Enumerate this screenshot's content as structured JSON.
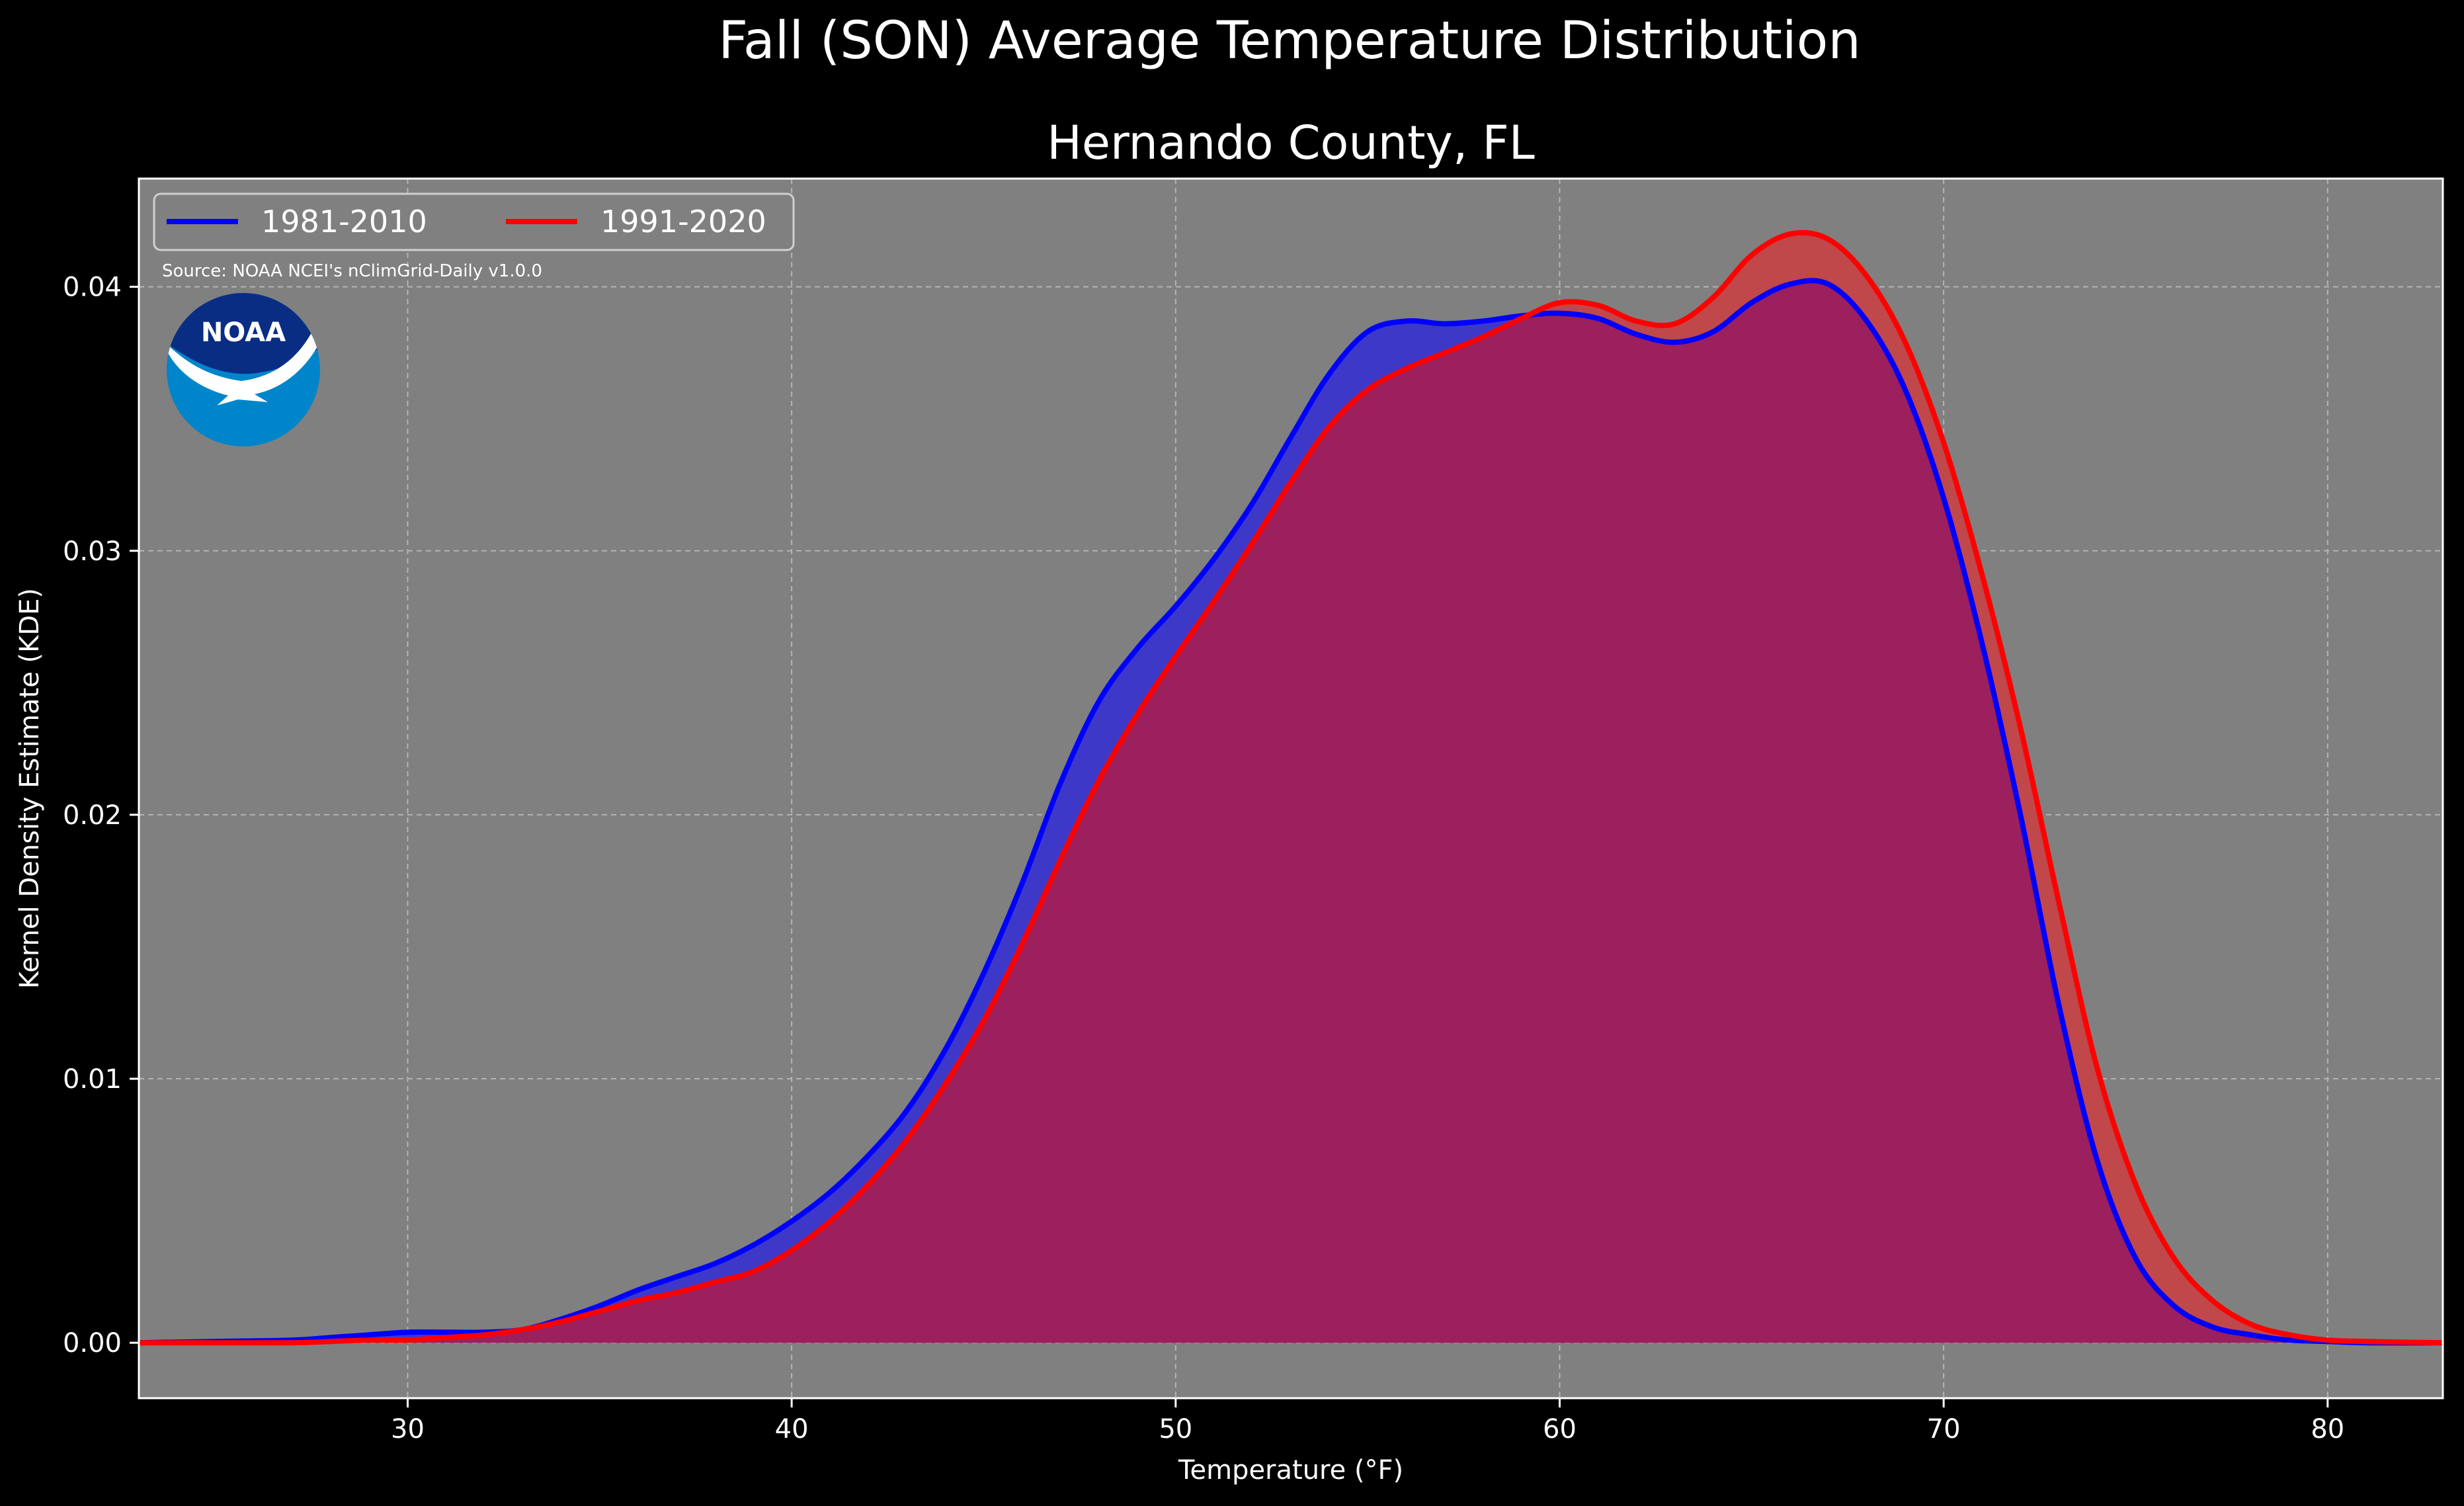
{
  "figure": {
    "suptitle": "Fall (SON) Average Temperature Distribution",
    "title": "Hernando County, FL",
    "source_note": "Source: NOAA NCEI's nClimGrid-Daily v1.0.0",
    "logo_text": "NOAA",
    "logo_icon": "noaa-logo-icon"
  },
  "colors": {
    "background": "#000000",
    "plot_background": "#808080",
    "series_1": "#0000ff",
    "series_2": "#ff0000",
    "series_1_fill": "#3d38c8",
    "series_2_fill": "#9c1f5e",
    "series_2_only_fill": "#c0474a",
    "logo_dark_blue": "#0a2d84",
    "logo_light_blue": "#0085ca"
  },
  "chart_data": {
    "type": "area",
    "title": "Hernando County, FL",
    "xlabel": "Temperature (°F)",
    "ylabel": "Kernel Density Estimate (KDE)",
    "xlim": [
      23,
      83
    ],
    "ylim": [
      -0.0021,
      0.0441
    ],
    "xticks": [
      30,
      40,
      50,
      60,
      70,
      80
    ],
    "xtick_labels": [
      "30",
      "40",
      "50",
      "60",
      "70",
      "80"
    ],
    "yticks": [
      0.0,
      0.01,
      0.02,
      0.03,
      0.04
    ],
    "ytick_labels": [
      "0.00",
      "0.01",
      "0.02",
      "0.03",
      "0.04"
    ],
    "grid": true,
    "legend_position": "upper-left",
    "x": [
      23,
      25,
      27,
      28,
      29,
      30,
      31,
      32,
      33,
      34,
      35,
      36,
      37,
      38,
      39,
      40,
      41,
      42,
      43,
      44,
      45,
      46,
      47,
      48,
      49,
      50,
      51,
      52,
      53,
      54,
      55,
      56,
      57,
      58,
      59,
      60,
      61,
      62,
      63,
      64,
      65,
      66,
      67,
      68,
      69,
      70,
      71,
      72,
      73,
      74,
      75,
      76,
      77,
      78,
      79,
      80,
      81,
      83
    ],
    "series": [
      {
        "name": "1981-2010",
        "color": "#0000ff",
        "values": [
          0.0,
          5e-05,
          0.0001,
          0.0002,
          0.0003,
          0.0004,
          0.0004,
          0.0004,
          0.0005,
          0.0009,
          0.0014,
          0.002,
          0.0025,
          0.003,
          0.0037,
          0.0046,
          0.0057,
          0.0071,
          0.0088,
          0.0111,
          0.014,
          0.0174,
          0.0212,
          0.0243,
          0.0263,
          0.0279,
          0.0297,
          0.0318,
          0.0343,
          0.0367,
          0.0383,
          0.0387,
          0.0386,
          0.0387,
          0.0389,
          0.039,
          0.0388,
          0.0382,
          0.0379,
          0.0383,
          0.0394,
          0.0401,
          0.0401,
          0.0387,
          0.0361,
          0.032,
          0.0265,
          0.02,
          0.0128,
          0.0069,
          0.0032,
          0.0014,
          0.0006,
          0.0003,
          0.0001,
          5e-05,
          0.0,
          0.0
        ]
      },
      {
        "name": "1991-2020",
        "color": "#ff0000",
        "values": [
          0.0,
          0.0,
          0.0,
          5e-05,
          0.0001,
          0.0001,
          0.0002,
          0.0003,
          0.0005,
          0.0008,
          0.0012,
          0.0016,
          0.0019,
          0.0023,
          0.0027,
          0.0035,
          0.0046,
          0.006,
          0.0077,
          0.0098,
          0.0122,
          0.0151,
          0.0183,
          0.0213,
          0.0238,
          0.026,
          0.0281,
          0.0303,
          0.0326,
          0.0347,
          0.0361,
          0.0369,
          0.0375,
          0.0381,
          0.0388,
          0.0394,
          0.0393,
          0.0387,
          0.0386,
          0.0396,
          0.0412,
          0.042,
          0.0418,
          0.0404,
          0.0379,
          0.0341,
          0.0291,
          0.0233,
          0.0167,
          0.0104,
          0.006,
          0.0032,
          0.0016,
          0.0007,
          0.0003,
          0.0001,
          5e-05,
          0.0
        ]
      }
    ]
  }
}
